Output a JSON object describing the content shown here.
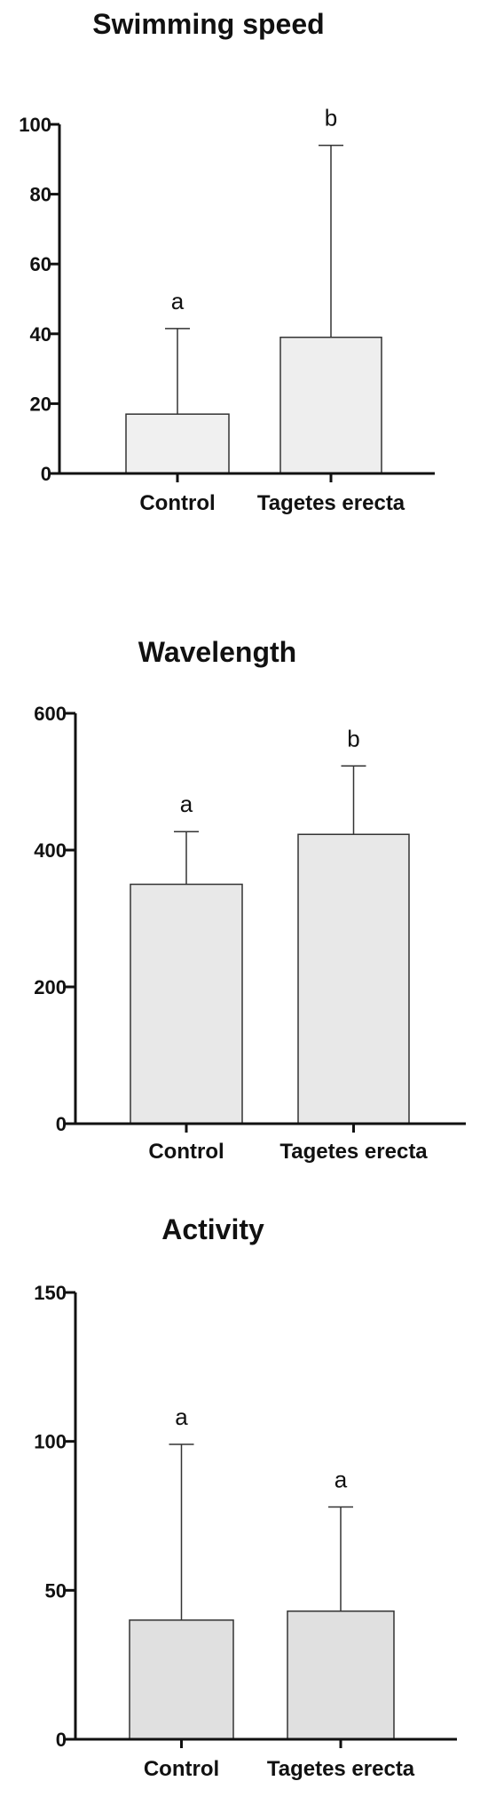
{
  "chart_data": [
    {
      "type": "bar",
      "title": "Swimming speed",
      "categories": [
        "Control",
        "Tagetes erecta"
      ],
      "values": [
        17,
        39
      ],
      "errors": [
        24.5,
        55
      ],
      "significance": [
        "a",
        "b"
      ],
      "ylim": [
        0,
        100
      ],
      "yticks": [
        0,
        20,
        40,
        60,
        80,
        100
      ],
      "xlabel": "",
      "ylabel": "",
      "grid": false,
      "colors": [
        "#f0f0f0",
        "#eeeeee"
      ]
    },
    {
      "type": "bar",
      "title": "Wavelength",
      "categories": [
        "Control",
        "Tagetes erecta"
      ],
      "values": [
        350,
        423
      ],
      "errors": [
        77,
        100
      ],
      "significance": [
        "a",
        "b"
      ],
      "ylim": [
        0,
        600
      ],
      "yticks": [
        0,
        200,
        400,
        600
      ],
      "xlabel": "",
      "ylabel": "",
      "grid": false,
      "colors": [
        "#e8e8e8",
        "#e8e8e8"
      ]
    },
    {
      "type": "bar",
      "title": "Activity",
      "categories": [
        "Control",
        "Tagetes erecta"
      ],
      "values": [
        40,
        43
      ],
      "errors": [
        59,
        35
      ],
      "significance": [
        "a",
        "a"
      ],
      "ylim": [
        0,
        150
      ],
      "yticks": [
        0,
        50,
        100,
        150
      ],
      "xlabel": "",
      "ylabel": "",
      "grid": false,
      "colors": [
        "#e0e0e0",
        "#e0e0e0"
      ]
    }
  ]
}
